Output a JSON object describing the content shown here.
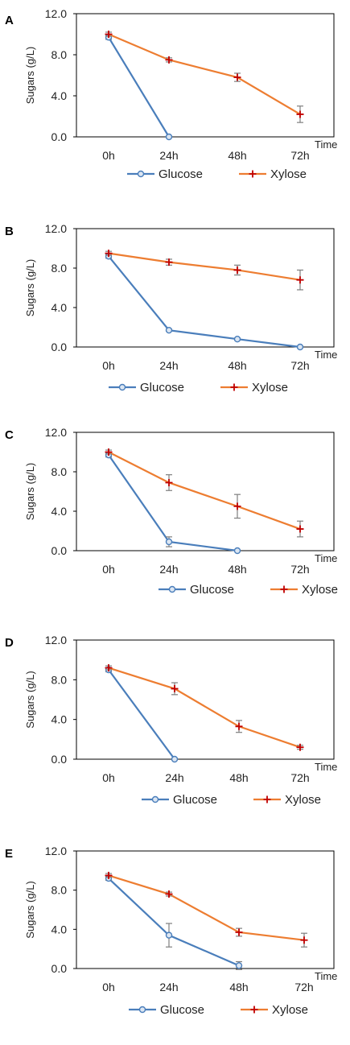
{
  "colors": {
    "glucose": "#4a7ebb",
    "xylose": "#ed7d31",
    "xylose_marker": "#c00000",
    "error_bar": "#7f7f7f"
  },
  "chart_data": [
    {
      "panel": "A",
      "type": "line",
      "categories": [
        "0h",
        "24h",
        "48h",
        "72h"
      ],
      "ylabel": "Sugars (g/L)",
      "xlabel": "Time",
      "ylim": [
        0,
        12
      ],
      "yticks": [
        "0.0",
        "4.0",
        "8.0",
        "12.0"
      ],
      "grid": false,
      "legend": "bottom",
      "series": [
        {
          "name": "Glucose",
          "marker": "circle",
          "values": [
            9.7,
            0.0,
            null,
            null
          ],
          "errors": [
            0.2,
            0,
            null,
            null
          ]
        },
        {
          "name": "Xylose",
          "marker": "plus",
          "values": [
            10.0,
            7.5,
            5.8,
            2.2
          ],
          "errors": [
            0.2,
            0.2,
            0.4,
            0.8
          ]
        }
      ]
    },
    {
      "panel": "B",
      "type": "line",
      "categories": [
        "0h",
        "24h",
        "48h",
        "72h"
      ],
      "ylabel": "Sugars (g/L)",
      "xlabel": "Time",
      "ylim": [
        0,
        12
      ],
      "yticks": [
        "0.0",
        "4.0",
        "8.0",
        "12.0"
      ],
      "grid": false,
      "legend": "bottom",
      "series": [
        {
          "name": "Glucose",
          "marker": "circle",
          "values": [
            9.2,
            1.7,
            0.8,
            0.0
          ],
          "errors": [
            0.2,
            0.1,
            0.1,
            0
          ]
        },
        {
          "name": "Xylose",
          "marker": "plus",
          "values": [
            9.5,
            8.6,
            7.8,
            6.8
          ],
          "errors": [
            0.2,
            0.3,
            0.5,
            1.0
          ]
        }
      ]
    },
    {
      "panel": "C",
      "type": "line",
      "categories": [
        "0h",
        "24h",
        "48h",
        "72h"
      ],
      "ylabel": "Sugars (g/L)",
      "xlabel": "Time",
      "ylim": [
        0,
        12
      ],
      "yticks": [
        "0.0",
        "4.0",
        "8.0",
        "12.0"
      ],
      "grid": false,
      "legend": "bottom",
      "series": [
        {
          "name": "Glucose",
          "marker": "circle",
          "values": [
            9.7,
            0.9,
            0.0,
            null
          ],
          "errors": [
            0.2,
            0.5,
            0,
            null
          ]
        },
        {
          "name": "Xylose",
          "marker": "plus",
          "values": [
            10.0,
            6.9,
            4.5,
            2.2
          ],
          "errors": [
            0.2,
            0.8,
            1.2,
            0.8
          ]
        }
      ]
    },
    {
      "panel": "D",
      "type": "line",
      "categories": [
        "0h",
        "24h",
        "48h",
        "72h"
      ],
      "ylabel": "Sugars (g/L)",
      "xlabel": "Time",
      "ylim": [
        0,
        12
      ],
      "yticks": [
        "0.0",
        "4.0",
        "8.0",
        "12.0"
      ],
      "grid": false,
      "legend": "bottom",
      "series": [
        {
          "name": "Glucose",
          "marker": "circle",
          "values": [
            9.0,
            0.0,
            null,
            null
          ],
          "errors": [
            0.2,
            0,
            null,
            null
          ]
        },
        {
          "name": "Xylose",
          "marker": "plus",
          "values": [
            9.2,
            7.1,
            3.3,
            1.2
          ],
          "errors": [
            0.2,
            0.6,
            0.6,
            0.2
          ]
        }
      ]
    },
    {
      "panel": "E",
      "type": "line",
      "categories": [
        "0h",
        "24h",
        "48h",
        "72h"
      ],
      "ylabel": "Sugars (g/L)",
      "xlabel": "Time",
      "ylim": [
        0,
        12
      ],
      "yticks": [
        "0.0",
        "4.0",
        "8.0",
        "12.0"
      ],
      "grid": false,
      "legend": "bottom",
      "series": [
        {
          "name": "Glucose",
          "marker": "circle",
          "values": [
            9.2,
            3.4,
            0.3,
            null
          ],
          "errors": [
            0.2,
            1.2,
            0.4,
            null
          ]
        },
        {
          "name": "Xylose",
          "marker": "plus",
          "values": [
            9.5,
            7.6,
            3.7,
            2.9
          ],
          "errors": [
            0.2,
            0.2,
            0.4,
            0.7
          ]
        }
      ]
    }
  ]
}
